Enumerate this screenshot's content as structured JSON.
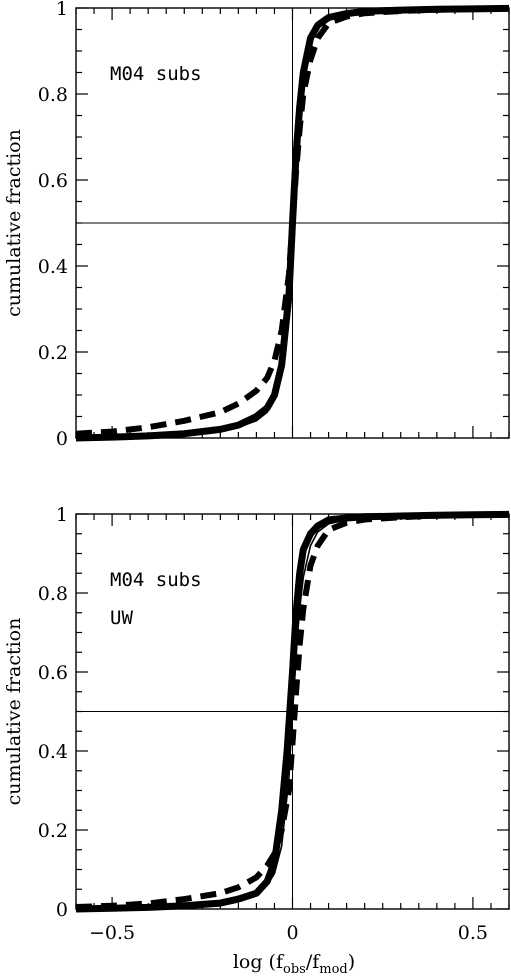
{
  "figure": {
    "xlabel_main": "log (f",
    "xlabel_sub1": "obs",
    "xlabel_mid": "/f",
    "xlabel_sub2": "mod",
    "xlabel_end": ")"
  },
  "chart_data": [
    {
      "type": "line",
      "title": "",
      "xlabel": "",
      "ylabel": "cumulative fraction",
      "annotations": [
        "M04 subs"
      ],
      "xlim": [
        -0.6,
        0.6
      ],
      "ylim": [
        0,
        1
      ],
      "xticks": [],
      "yticks": [
        "0",
        "0.2",
        "0.4",
        "0.6",
        "0.8",
        "1"
      ],
      "reference_lines": {
        "x": 0,
        "y": 0.5
      },
      "series": [
        {
          "style": "thick-solid",
          "x": [
            -0.6,
            -0.5,
            -0.4,
            -0.3,
            -0.2,
            -0.15,
            -0.1,
            -0.07,
            -0.05,
            -0.03,
            -0.01,
            0,
            0.01,
            0.02,
            0.03,
            0.05,
            0.07,
            0.1,
            0.15,
            0.2,
            0.3,
            0.4,
            0.5,
            0.6
          ],
          "y": [
            0.0,
            0.002,
            0.005,
            0.01,
            0.02,
            0.03,
            0.05,
            0.07,
            0.1,
            0.17,
            0.33,
            0.5,
            0.66,
            0.77,
            0.85,
            0.93,
            0.96,
            0.978,
            0.987,
            0.992,
            0.995,
            0.997,
            0.998,
            0.999
          ]
        },
        {
          "style": "thin-solid",
          "x": [
            -0.6,
            -0.5,
            -0.4,
            -0.3,
            -0.2,
            -0.15,
            -0.1,
            -0.07,
            -0.05,
            -0.03,
            -0.01,
            0,
            0.01,
            0.02,
            0.03,
            0.05,
            0.07,
            0.1,
            0.15,
            0.2,
            0.3,
            0.4,
            0.5,
            0.6
          ],
          "y": [
            0.0,
            0.002,
            0.004,
            0.008,
            0.016,
            0.025,
            0.04,
            0.06,
            0.09,
            0.15,
            0.31,
            0.5,
            0.66,
            0.76,
            0.84,
            0.92,
            0.955,
            0.975,
            0.985,
            0.99,
            0.994,
            0.996,
            0.998,
            0.999
          ]
        },
        {
          "style": "dashed",
          "x": [
            -0.6,
            -0.5,
            -0.4,
            -0.3,
            -0.2,
            -0.15,
            -0.1,
            -0.07,
            -0.05,
            -0.03,
            -0.01,
            0,
            0.01,
            0.02,
            0.03,
            0.05,
            0.07,
            0.1,
            0.15,
            0.2,
            0.3,
            0.4,
            0.5,
            0.6
          ],
          "y": [
            0.01,
            0.015,
            0.025,
            0.04,
            0.06,
            0.08,
            0.11,
            0.14,
            0.18,
            0.25,
            0.38,
            0.5,
            0.62,
            0.72,
            0.8,
            0.88,
            0.93,
            0.965,
            0.98,
            0.988,
            0.993,
            0.996,
            0.998,
            0.999
          ]
        }
      ]
    },
    {
      "type": "line",
      "title": "",
      "xlabel": "",
      "ylabel": "cumulative fraction",
      "annotations": [
        "M04 subs",
        "UW"
      ],
      "xlim": [
        -0.6,
        0.6
      ],
      "ylim": [
        0,
        1
      ],
      "xticks": [
        "−0.5",
        "0",
        "0.5"
      ],
      "yticks": [
        "0",
        "0.2",
        "0.4",
        "0.6",
        "0.8",
        "1"
      ],
      "reference_lines": {
        "x": 0,
        "y": 0.5
      },
      "series": [
        {
          "style": "thick-solid",
          "x": [
            -0.6,
            -0.5,
            -0.4,
            -0.3,
            -0.2,
            -0.15,
            -0.1,
            -0.07,
            -0.05,
            -0.03,
            -0.015,
            0,
            0.01,
            0.02,
            0.03,
            0.05,
            0.07,
            0.1,
            0.15,
            0.2,
            0.3,
            0.4,
            0.5,
            0.6
          ],
          "y": [
            0.0,
            0.002,
            0.004,
            0.008,
            0.015,
            0.025,
            0.04,
            0.07,
            0.12,
            0.25,
            0.4,
            0.6,
            0.75,
            0.85,
            0.91,
            0.95,
            0.97,
            0.985,
            0.99,
            0.993,
            0.995,
            0.997,
            0.998,
            0.999
          ]
        },
        {
          "style": "thin-solid",
          "x": [
            -0.6,
            -0.5,
            -0.4,
            -0.3,
            -0.2,
            -0.15,
            -0.1,
            -0.07,
            -0.05,
            -0.03,
            -0.01,
            0,
            0.01,
            0.02,
            0.03,
            0.05,
            0.07,
            0.1,
            0.15,
            0.2,
            0.3,
            0.4,
            0.5,
            0.6
          ],
          "y": [
            0.0,
            0.002,
            0.004,
            0.008,
            0.016,
            0.025,
            0.04,
            0.06,
            0.09,
            0.16,
            0.33,
            0.5,
            0.65,
            0.76,
            0.84,
            0.92,
            0.955,
            0.975,
            0.985,
            0.99,
            0.994,
            0.996,
            0.998,
            0.999
          ]
        },
        {
          "style": "dashed",
          "x": [
            -0.6,
            -0.5,
            -0.4,
            -0.3,
            -0.2,
            -0.15,
            -0.1,
            -0.07,
            -0.05,
            -0.03,
            -0.01,
            0,
            0.01,
            0.02,
            0.03,
            0.05,
            0.07,
            0.1,
            0.15,
            0.2,
            0.3,
            0.4,
            0.5,
            0.6
          ],
          "y": [
            0.005,
            0.008,
            0.014,
            0.025,
            0.04,
            0.055,
            0.08,
            0.11,
            0.14,
            0.2,
            0.3,
            0.42,
            0.55,
            0.67,
            0.76,
            0.87,
            0.92,
            0.96,
            0.978,
            0.986,
            0.992,
            0.996,
            0.998,
            0.999
          ]
        }
      ]
    }
  ]
}
